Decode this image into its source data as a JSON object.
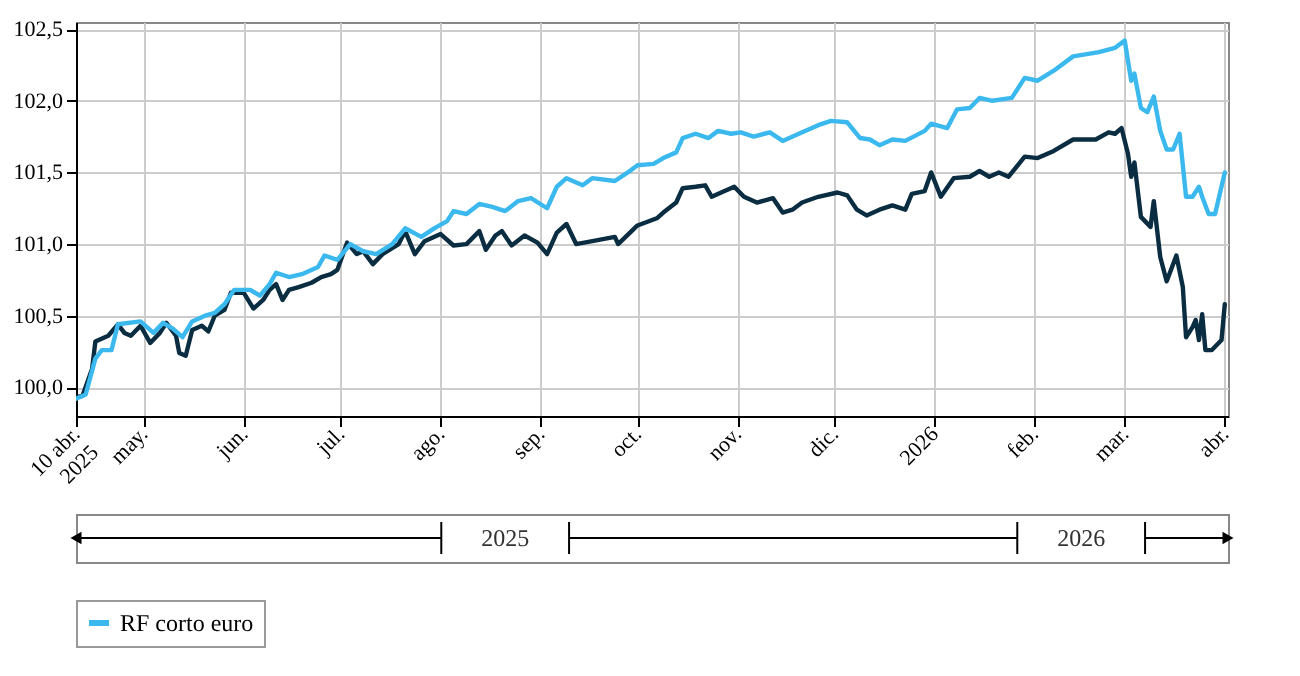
{
  "chart_data": {
    "type": "line",
    "xlim": [
      "2025-04-10",
      "2026-04-02"
    ],
    "ylim": [
      99.8,
      102.55
    ],
    "xticks": [
      {
        "value": "2025-04-10",
        "label": "10 abr.\n2025"
      },
      {
        "value": "2025-05-01",
        "label": "may."
      },
      {
        "value": "2025-06-01",
        "label": "jun."
      },
      {
        "value": "2025-07-01",
        "label": "jul."
      },
      {
        "value": "2025-08-01",
        "label": "ago."
      },
      {
        "value": "2025-09-01",
        "label": "sep."
      },
      {
        "value": "2025-10-01",
        "label": "oct."
      },
      {
        "value": "2025-11-01",
        "label": "nov."
      },
      {
        "value": "2025-12-01",
        "label": "dic."
      },
      {
        "value": "2026-01-01",
        "label": "2026"
      },
      {
        "value": "2026-02-01",
        "label": "feb."
      },
      {
        "value": "2026-03-01",
        "label": "mar."
      },
      {
        "value": "2026-04-01",
        "label": "abr."
      }
    ],
    "yticks": [
      {
        "value": 100,
        "label": "100,0"
      },
      {
        "value": 100.5,
        "label": "100,5"
      },
      {
        "value": 101,
        "label": "101,0"
      },
      {
        "value": 101.5,
        "label": "101,5"
      },
      {
        "value": 102,
        "label": "102,0"
      },
      {
        "value": 102.5,
        "label": "102,5"
      }
    ],
    "grid": true,
    "legend": "bottom",
    "line_style": "solid",
    "marker": "none",
    "annotations": [
      "2025",
      "2026"
    ],
    "series": [
      {
        "color": "#0b2d42",
        "x": [
          "2025-04-10",
          "2025-04-12",
          "2025-04-15",
          "2025-04-16",
          "2025-04-20",
          "2025-04-23",
          "2025-04-25",
          "2025-04-27",
          "2025-04-30",
          "2025-05-03",
          "2025-05-06",
          "2025-05-08",
          "2025-05-11",
          "2025-05-12",
          "2025-05-14",
          "2025-05-16",
          "2025-05-19",
          "2025-05-21",
          "2025-05-23",
          "2025-05-26",
          "2025-05-28",
          "2025-06-01",
          "2025-06-04",
          "2025-06-07",
          "2025-06-09",
          "2025-06-11",
          "2025-06-13",
          "2025-06-15",
          "2025-06-18",
          "2025-06-22",
          "2025-06-25",
          "2025-06-28",
          "2025-06-30",
          "2025-07-03",
          "2025-07-06",
          "2025-07-08",
          "2025-07-11",
          "2025-07-14",
          "2025-07-19",
          "2025-07-21",
          "2025-07-24",
          "2025-07-27",
          "2025-08-01",
          "2025-08-05",
          "2025-08-09",
          "2025-08-13",
          "2025-08-15",
          "2025-08-18",
          "2025-08-20",
          "2025-08-23",
          "2025-08-27",
          "2025-08-31",
          "2025-09-03",
          "2025-09-06",
          "2025-09-09",
          "2025-09-12",
          "2025-09-17",
          "2025-09-24",
          "2025-09-25",
          "2025-10-01",
          "2025-10-07",
          "2025-10-09",
          "2025-10-13",
          "2025-10-15",
          "2025-10-19",
          "2025-10-22",
          "2025-10-24",
          "2025-10-28",
          "2025-10-31",
          "2025-11-03",
          "2025-11-07",
          "2025-11-12",
          "2025-11-15",
          "2025-11-18",
          "2025-11-21",
          "2025-11-26",
          "2025-12-02",
          "2025-12-05",
          "2025-12-08",
          "2025-12-11",
          "2025-12-15",
          "2025-12-19",
          "2025-12-23",
          "2025-12-25",
          "2025-12-29",
          "2025-12-31",
          "2026-01-03",
          "2026-01-07",
          "2026-01-12",
          "2026-01-15",
          "2026-01-18",
          "2026-01-21",
          "2026-01-24",
          "2026-01-29",
          "2026-02-02",
          "2026-02-07",
          "2026-02-13",
          "2026-02-20",
          "2026-02-24",
          "2026-02-26",
          "2026-02-28",
          "2026-03-02",
          "2026-03-03",
          "2026-03-04",
          "2026-03-06",
          "2026-03-09",
          "2026-03-10",
          "2026-03-12",
          "2026-03-14",
          "2026-03-17",
          "2026-03-19",
          "2026-03-20",
          "2026-03-22",
          "2026-03-23",
          "2026-03-24",
          "2026-03-25",
          "2026-03-26",
          "2026-03-28",
          "2026-03-31",
          "2026-04-01"
        ],
        "values": [
          99.93,
          99.94,
          100.13,
          100.32,
          100.36,
          100.44,
          100.38,
          100.36,
          100.43,
          100.31,
          100.38,
          100.45,
          100.36,
          100.24,
          100.22,
          100.4,
          100.43,
          100.39,
          100.5,
          100.54,
          100.66,
          100.66,
          100.55,
          100.61,
          100.68,
          100.72,
          100.61,
          100.68,
          100.7,
          100.73,
          100.77,
          100.79,
          100.82,
          101.01,
          100.93,
          100.95,
          100.86,
          100.93,
          101.0,
          101.09,
          100.93,
          101.02,
          101.07,
          100.99,
          101.0,
          101.09,
          100.96,
          101.06,
          101.09,
          100.99,
          101.06,
          101.01,
          100.93,
          101.08,
          101.14,
          101.0,
          101.02,
          101.05,
          101.0,
          101.13,
          101.18,
          101.22,
          101.29,
          101.39,
          101.4,
          101.41,
          101.33,
          101.37,
          101.4,
          101.33,
          101.29,
          101.32,
          101.22,
          101.24,
          101.29,
          101.33,
          101.36,
          101.34,
          101.24,
          101.2,
          101.24,
          101.27,
          101.24,
          101.35,
          101.37,
          101.5,
          101.33,
          101.46,
          101.47,
          101.51,
          101.47,
          101.5,
          101.47,
          101.61,
          101.6,
          101.65,
          101.73,
          101.73,
          101.78,
          101.77,
          101.81,
          101.63,
          101.47,
          101.57,
          101.19,
          101.12,
          101.3,
          100.91,
          100.74,
          100.92,
          100.7,
          100.35,
          100.42,
          100.47,
          100.33,
          100.51,
          100.26,
          100.26,
          100.33,
          100.58
        ]
      },
      {
        "name": "RF corto euro",
        "color": "#3bb9ef",
        "x": [
          "2025-04-10",
          "2025-04-13",
          "2025-04-16",
          "2025-04-18",
          "2025-04-21",
          "2025-04-23",
          "2025-04-30",
          "2025-05-04",
          "2025-05-07",
          "2025-05-10",
          "2025-05-13",
          "2025-05-16",
          "2025-05-20",
          "2025-05-23",
          "2025-05-26",
          "2025-05-29",
          "2025-06-03",
          "2025-06-06",
          "2025-06-09",
          "2025-06-11",
          "2025-06-15",
          "2025-06-19",
          "2025-06-24",
          "2025-06-26",
          "2025-06-30",
          "2025-07-04",
          "2025-07-08",
          "2025-07-12",
          "2025-07-17",
          "2025-07-21",
          "2025-07-26",
          "2025-07-30",
          "2025-08-03",
          "2025-08-05",
          "2025-08-09",
          "2025-08-13",
          "2025-08-17",
          "2025-08-21",
          "2025-08-25",
          "2025-08-29",
          "2025-09-03",
          "2025-09-06",
          "2025-09-09",
          "2025-09-14",
          "2025-09-17",
          "2025-09-24",
          "2025-09-28",
          "2025-10-01",
          "2025-10-06",
          "2025-10-09",
          "2025-10-13",
          "2025-10-15",
          "2025-10-19",
          "2025-10-23",
          "2025-10-26",
          "2025-10-30",
          "2025-11-02",
          "2025-11-06",
          "2025-11-11",
          "2025-11-15",
          "2025-11-20",
          "2025-11-26",
          "2025-11-30",
          "2025-12-05",
          "2025-12-09",
          "2025-12-12",
          "2025-12-15",
          "2025-12-19",
          "2025-12-23",
          "2025-12-29",
          "2025-12-31",
          "2026-01-05",
          "2026-01-08",
          "2026-01-12",
          "2026-01-15",
          "2026-01-19",
          "2026-01-25",
          "2026-01-29",
          "2026-02-02",
          "2026-02-07",
          "2026-02-13",
          "2026-02-21",
          "2026-02-26",
          "2026-03-01",
          "2026-03-03",
          "2026-03-04",
          "2026-03-06",
          "2026-03-08",
          "2026-03-10",
          "2026-03-12",
          "2026-03-14",
          "2026-03-16",
          "2026-03-18",
          "2026-03-20",
          "2026-03-22",
          "2026-03-24",
          "2026-03-25",
          "2026-03-27",
          "2026-03-29",
          "2026-04-01"
        ],
        "values": [
          99.92,
          99.95,
          100.2,
          100.26,
          100.26,
          100.44,
          100.46,
          100.38,
          100.45,
          100.41,
          100.35,
          100.46,
          100.5,
          100.52,
          100.58,
          100.68,
          100.68,
          100.64,
          100.72,
          100.8,
          100.77,
          100.79,
          100.84,
          100.92,
          100.89,
          101.0,
          100.95,
          100.93,
          101.0,
          101.11,
          101.05,
          101.11,
          101.16,
          101.23,
          101.21,
          101.28,
          101.26,
          101.23,
          101.3,
          101.32,
          101.25,
          101.4,
          101.46,
          101.41,
          101.46,
          101.44,
          101.5,
          101.55,
          101.56,
          101.6,
          101.64,
          101.74,
          101.77,
          101.74,
          101.79,
          101.77,
          101.78,
          101.75,
          101.78,
          101.72,
          101.77,
          101.83,
          101.86,
          101.85,
          101.74,
          101.73,
          101.69,
          101.73,
          101.72,
          101.79,
          101.84,
          101.81,
          101.94,
          101.95,
          102.02,
          102.0,
          102.02,
          102.16,
          102.14,
          102.21,
          102.31,
          102.34,
          102.37,
          102.42,
          102.14,
          102.19,
          101.95,
          101.92,
          102.03,
          101.79,
          101.66,
          101.66,
          101.77,
          101.33,
          101.33,
          101.4,
          101.33,
          101.21,
          101.21,
          101.5
        ]
      }
    ]
  }
}
